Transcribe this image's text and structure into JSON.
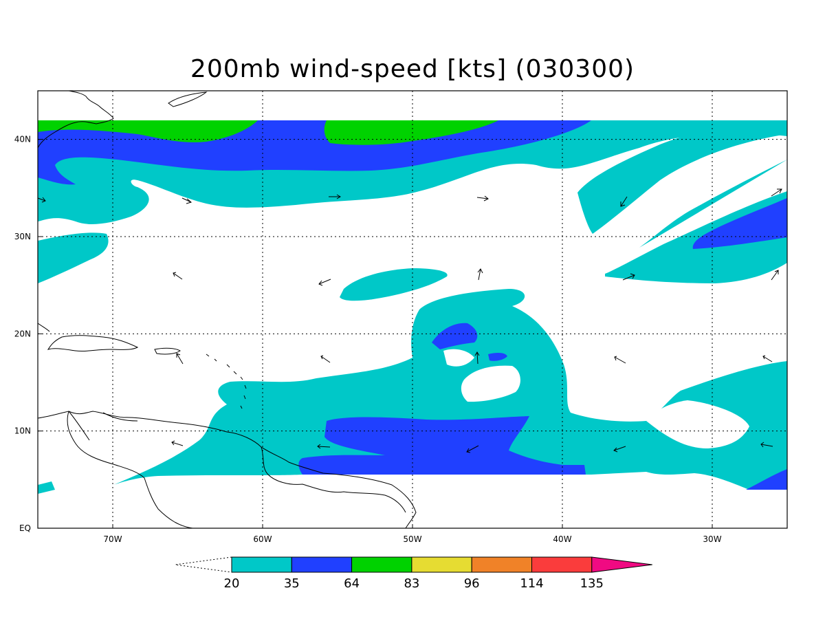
{
  "title": "200mb wind-speed [kts] (030300)",
  "map": {
    "lon_range": [
      -75,
      -25
    ],
    "lat_range": [
      0,
      45
    ],
    "x_ticks": [
      {
        "lon": -70,
        "label": "70W"
      },
      {
        "lon": -60,
        "label": "60W"
      },
      {
        "lon": -50,
        "label": "50W"
      },
      {
        "lon": -40,
        "label": "40W"
      },
      {
        "lon": -30,
        "label": "30W"
      }
    ],
    "y_ticks": [
      {
        "lat": 0,
        "label": "EQ"
      },
      {
        "lat": 10,
        "label": "10N"
      },
      {
        "lat": 20,
        "label": "20N"
      },
      {
        "lat": 30,
        "label": "30N"
      },
      {
        "lat": 40,
        "label": "40N"
      }
    ],
    "grid": "dotted",
    "field_colors": {
      "c20": "#00c8c8",
      "c35": "#2040ff",
      "c64": "#00d200",
      "c83": "#e6dc32",
      "c96": "#f08228",
      "c114": "#fa3c3c",
      "c135": "#f00a82"
    }
  },
  "colorbar": {
    "labels": [
      "20",
      "35",
      "64",
      "83",
      "96",
      "114",
      "135"
    ],
    "colors": [
      "#00c8c8",
      "#2040ff",
      "#00d200",
      "#e6dc32",
      "#f08228",
      "#fa3c3c",
      "#f00a82"
    ]
  }
}
